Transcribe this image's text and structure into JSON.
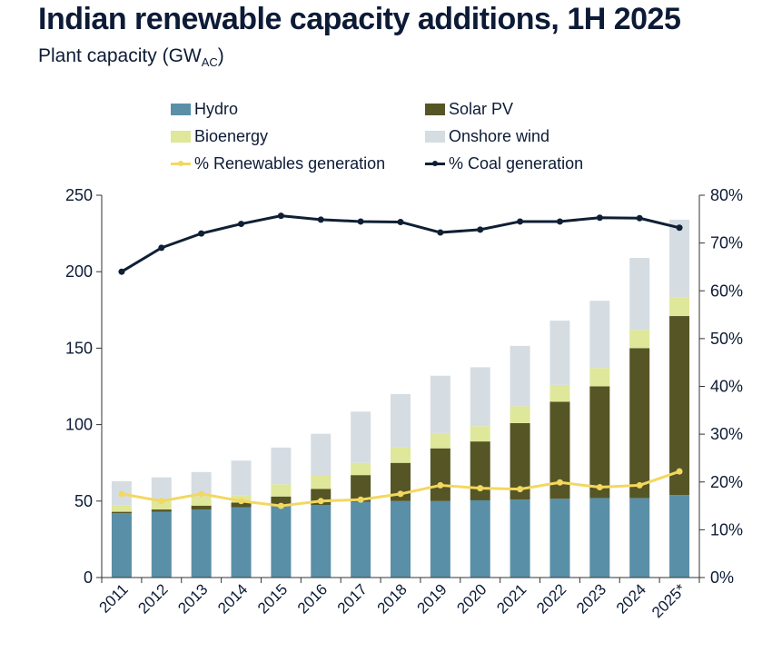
{
  "chart_data": {
    "type": "bar",
    "stacked": true,
    "title": "Indian renewable capacity additions, 1H 2025",
    "subtitle_main": "Plant capacity (GW",
    "subtitle_sub": "AC",
    "subtitle_end": ")",
    "categories": [
      "2011",
      "2012",
      "2013",
      "2014",
      "2015",
      "2016",
      "2017",
      "2018",
      "2019",
      "2020",
      "2021",
      "2022",
      "2023",
      "2024",
      "2025*"
    ],
    "ylim": [
      0,
      250
    ],
    "yticks": [
      0,
      50,
      100,
      150,
      200,
      250
    ],
    "y2lim": [
      0,
      80
    ],
    "y2ticks": [
      "0%",
      "10%",
      "20%",
      "30%",
      "40%",
      "50%",
      "60%",
      "70%",
      "80%"
    ],
    "legend_position": "top",
    "grid": false,
    "series": [
      {
        "name": "Hydro",
        "color": "#5a8fa8",
        "values": [
          42,
          43,
          44.5,
          46,
          46.5,
          47.5,
          49.5,
          50,
          50,
          50.5,
          51,
          51.5,
          52,
          52,
          54
        ]
      },
      {
        "name": "Solar PV",
        "color": "#565525",
        "values": [
          1,
          1.5,
          2.5,
          3,
          6.5,
          10.5,
          17.5,
          25,
          34.5,
          38.5,
          50,
          63.5,
          73,
          98,
          117
        ]
      },
      {
        "name": "Bioenergy",
        "color": "#dfe79a",
        "values": [
          4,
          6.5,
          6,
          5,
          8,
          8.5,
          8,
          10,
          10,
          10,
          11,
          11,
          12,
          12,
          12
        ]
      },
      {
        "name": "Onshore wind",
        "color": "#d5dde3",
        "values": [
          16,
          14.5,
          16,
          22.5,
          24,
          27.5,
          33.5,
          35,
          37.5,
          38.5,
          39.5,
          42,
          44,
          47,
          51
        ]
      }
    ],
    "lines": [
      {
        "name": "% Renewables generation",
        "color": "#f2d860",
        "axis": "right",
        "values": [
          17.5,
          16,
          17.5,
          16,
          15,
          16,
          16.3,
          17.5,
          19.3,
          18.7,
          18.5,
          19.9,
          18.9,
          19.3,
          22.2
        ]
      },
      {
        "name": "% Coal generation",
        "color": "#0f1f35",
        "axis": "right",
        "values": [
          64,
          69,
          72,
          74,
          75.7,
          74.9,
          74.5,
          74.4,
          72.2,
          72.8,
          74.5,
          74.5,
          75.3,
          75.2,
          73.2
        ]
      }
    ]
  }
}
